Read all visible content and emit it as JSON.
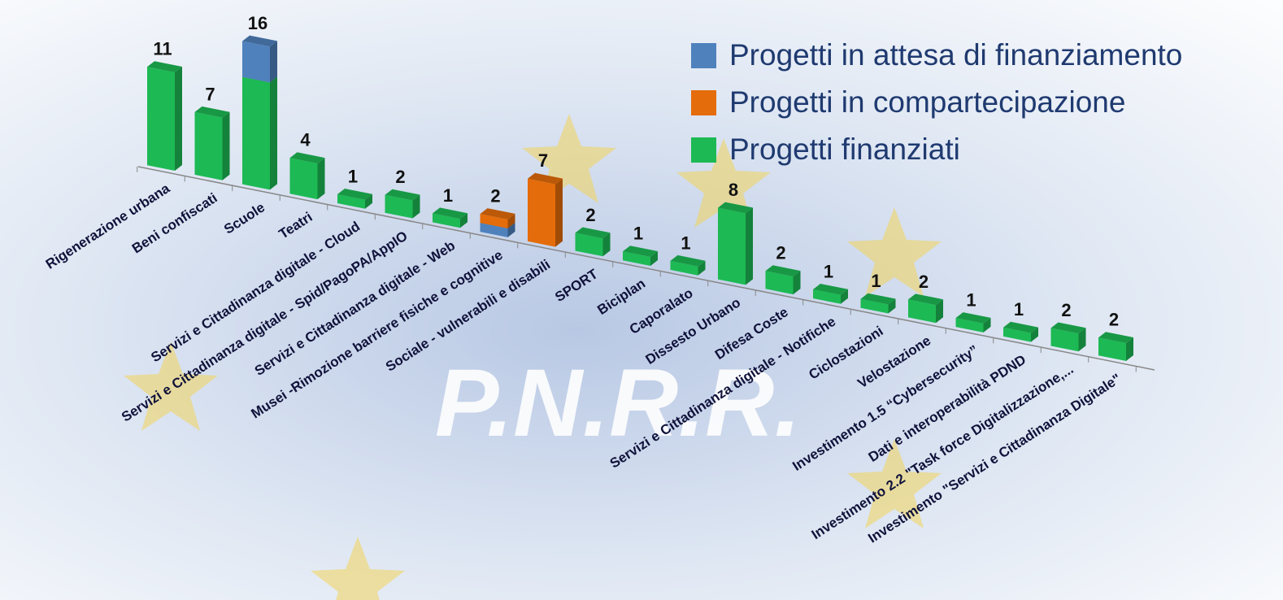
{
  "chart_data": {
    "type": "bar3d",
    "watermark": "P.N.R.R.",
    "categories": [
      "Rigenerazione urbana",
      "Beni confiscati",
      "Scuole",
      "Teatri",
      "Servizi e Cittadinanza digitale - Cloud",
      "Servizi e Cittadinanza digitale - Spid/PagoPA/AppIO",
      "Servizi e Cittadinanza digitale - Web",
      "Musei -Rimozione  barriere fisiche e cognitive",
      "Sociale - vulnerabili e disabili",
      "SPORT",
      "Biciplan",
      "Caporalato",
      "Dissesto Urbano",
      "Difesa Coste",
      "Servizi e Cittadinanza digitale - Notifiche",
      "Ciclostazioni",
      "Velostazione",
      "Investimento 1.5 “Cybersecurity”",
      "Dati e interoperabilità PDND",
      "Investimento 2.2 \"Task force Digitalizzazione,...",
      "Investimento \"Servizi e Cittadinanza Digitale\""
    ],
    "series": [
      {
        "name": "Progetti in attesa di finanziamento",
        "color": "#4f81bd",
        "values": [
          0,
          0,
          4,
          0,
          0,
          0,
          0,
          1,
          0,
          0,
          0,
          0,
          0,
          0,
          0,
          0,
          0,
          0,
          0,
          0,
          0
        ]
      },
      {
        "name": "Progetti in compartecipazione",
        "color": "#e46c0a",
        "values": [
          0,
          0,
          0,
          0,
          0,
          0,
          0,
          1,
          7,
          0,
          0,
          0,
          0,
          0,
          0,
          0,
          0,
          0,
          0,
          0,
          0
        ]
      },
      {
        "name": "Progetti finanziati",
        "color": "#1db954",
        "values": [
          11,
          7,
          12,
          4,
          1,
          2,
          1,
          0,
          0,
          2,
          1,
          1,
          8,
          2,
          1,
          1,
          2,
          1,
          1,
          2,
          2
        ]
      }
    ],
    "totals": [
      11,
      7,
      16,
      4,
      1,
      2,
      1,
      2,
      7,
      2,
      1,
      1,
      8,
      2,
      1,
      1,
      2,
      1,
      1,
      2,
      2
    ],
    "legend": "top-right"
  }
}
